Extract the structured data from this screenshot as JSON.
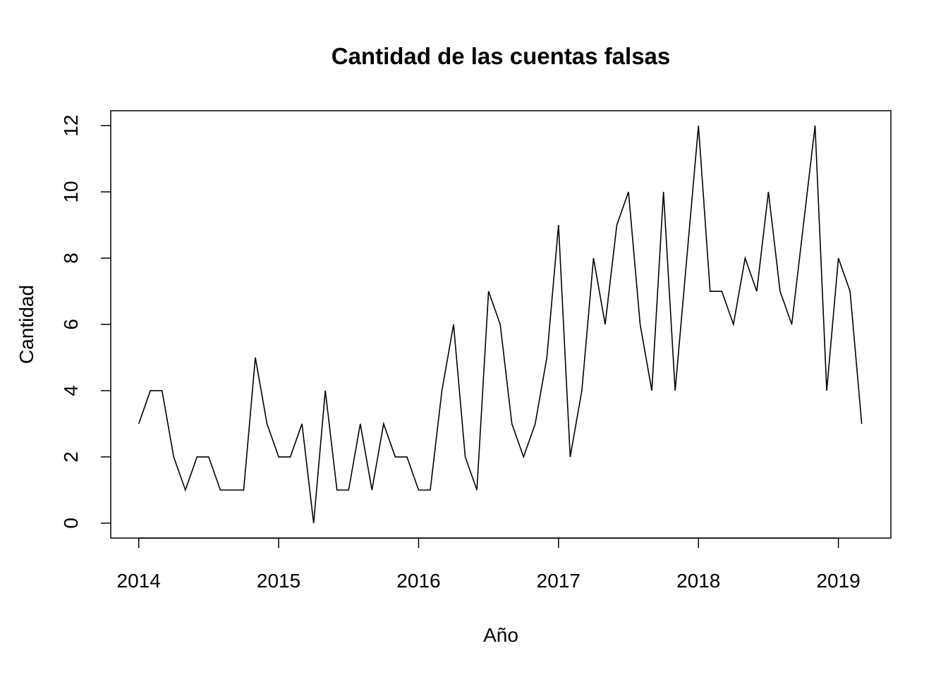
{
  "chart_data": {
    "type": "line",
    "title": "Cantidad de las cuentas falsas",
    "xlabel": "Año",
    "ylabel": "Cantidad",
    "xlim": [
      2013.8,
      2019.375
    ],
    "ylim": [
      -0.45,
      12.45
    ],
    "x_ticks": [
      2014,
      2015,
      2016,
      2017,
      2018,
      2019
    ],
    "y_ticks": [
      0,
      2,
      4,
      6,
      8,
      10,
      12
    ],
    "grid": false,
    "legend": "none",
    "line_color": "#000000",
    "x_start": 2014,
    "frequency": 12,
    "values": [
      3,
      4,
      4,
      2,
      1,
      2,
      2,
      1,
      1,
      1,
      5,
      3,
      2,
      2,
      3,
      0,
      4,
      1,
      1,
      3,
      1,
      3,
      2,
      2,
      1,
      1,
      4,
      6,
      2,
      1,
      7,
      6,
      3,
      2,
      3,
      5,
      9,
      2,
      4,
      8,
      6,
      9,
      10,
      6,
      4,
      10,
      4,
      8,
      12,
      7,
      7,
      6,
      8,
      7,
      10,
      7,
      6,
      9,
      12,
      4,
      8,
      7,
      3
    ]
  }
}
